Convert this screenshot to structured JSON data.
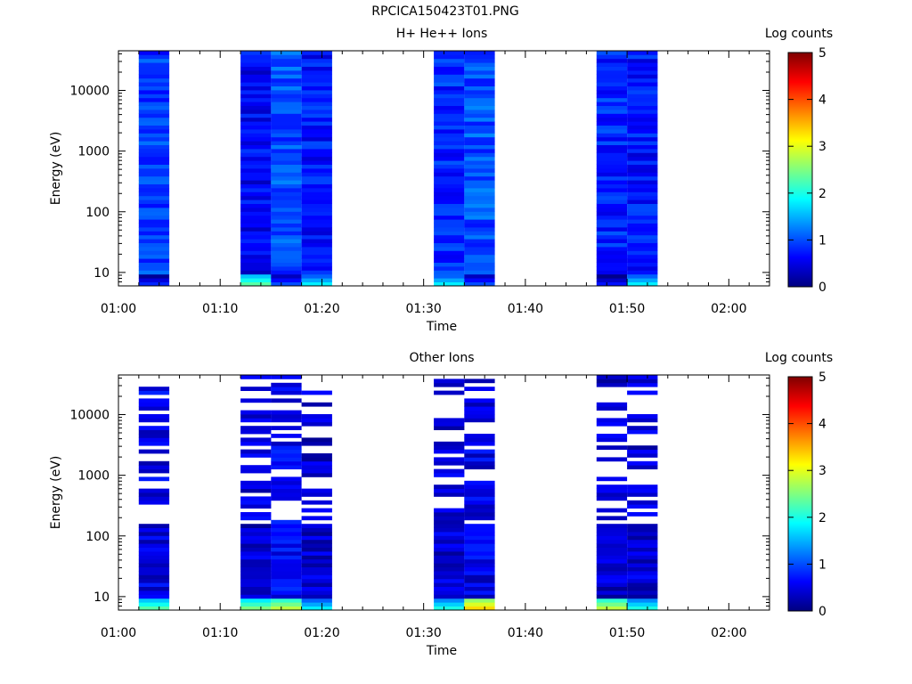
{
  "page": {
    "title": "RPCICA150423T01.PNG"
  },
  "colorbar": {
    "label": "Log counts",
    "ticks": [
      "0",
      "1",
      "2",
      "3",
      "4",
      "5"
    ]
  },
  "chart_data": [
    {
      "type": "heatmap",
      "title": "H+ He++ Ions",
      "xlabel": "Time",
      "ylabel": "Energy (eV)",
      "x_ticks": [
        "01:00",
        "01:10",
        "01:20",
        "01:30",
        "01:40",
        "01:50",
        "02:00"
      ],
      "x_range_minutes": [
        60,
        124
      ],
      "y_ticks": [
        "10",
        "100",
        "1000",
        "10000"
      ],
      "y_scale": "log",
      "ylim": [
        6,
        45000
      ],
      "colorbar_range": [
        0,
        5
      ],
      "time_columns": [
        {
          "start": "01:02",
          "end": "01:05",
          "low_energy_log_counts": 0.8,
          "typical_log_counts": 0.9
        },
        {
          "start": "01:12",
          "end": "01:15",
          "low_energy_log_counts": 2.3,
          "typical_log_counts": 0.6
        },
        {
          "start": "01:15",
          "end": "01:18",
          "low_energy_log_counts": 1.0,
          "typical_log_counts": 1.0
        },
        {
          "start": "01:18",
          "end": "01:21",
          "low_energy_log_counts": 1.8,
          "typical_log_counts": 0.7
        },
        {
          "start": "01:31",
          "end": "01:34",
          "low_energy_log_counts": 1.8,
          "typical_log_counts": 0.8
        },
        {
          "start": "01:34",
          "end": "01:37",
          "low_energy_log_counts": 1.0,
          "typical_log_counts": 1.0
        },
        {
          "start": "01:47",
          "end": "01:50",
          "low_energy_log_counts": 0.7,
          "typical_log_counts": 0.8
        },
        {
          "start": "01:50",
          "end": "01:53",
          "low_energy_log_counts": 1.8,
          "typical_log_counts": 0.7
        }
      ]
    },
    {
      "type": "heatmap",
      "title": "Other Ions",
      "xlabel": "Time",
      "ylabel": "Energy (eV)",
      "x_ticks": [
        "01:00",
        "01:10",
        "01:20",
        "01:30",
        "01:40",
        "01:50",
        "02:00"
      ],
      "x_range_minutes": [
        60,
        124
      ],
      "y_ticks": [
        "10",
        "100",
        "1000",
        "10000"
      ],
      "y_scale": "log",
      "ylim": [
        6,
        45000
      ],
      "colorbar_range": [
        0,
        5
      ],
      "time_columns": [
        {
          "start": "01:02",
          "end": "01:05",
          "low_energy_log_counts": 2.3,
          "typical_log_counts": 0.5
        },
        {
          "start": "01:12",
          "end": "01:15",
          "low_energy_log_counts": 2.5,
          "typical_log_counts": 0.4
        },
        {
          "start": "01:15",
          "end": "01:18",
          "low_energy_log_counts": 2.8,
          "typical_log_counts": 0.6
        },
        {
          "start": "01:18",
          "end": "01:21",
          "low_energy_log_counts": 1.8,
          "typical_log_counts": 0.4
        },
        {
          "start": "01:31",
          "end": "01:34",
          "low_energy_log_counts": 2.0,
          "typical_log_counts": 0.4
        },
        {
          "start": "01:34",
          "end": "01:37",
          "low_energy_log_counts": 3.3,
          "typical_log_counts": 0.5
        },
        {
          "start": "01:47",
          "end": "01:50",
          "low_energy_log_counts": 2.8,
          "typical_log_counts": 0.4
        },
        {
          "start": "01:50",
          "end": "01:53",
          "low_energy_log_counts": 2.0,
          "typical_log_counts": 0.4
        }
      ]
    }
  ]
}
